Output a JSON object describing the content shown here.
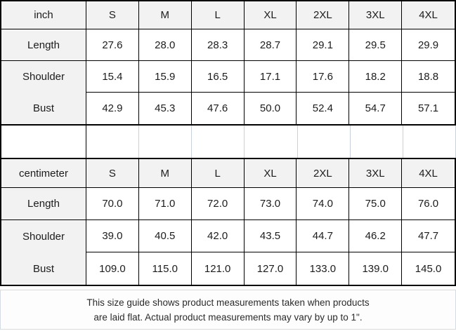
{
  "colors": {
    "table_border": "#000000",
    "light_border": "#c9d1dd",
    "header_bg": "#f2f2f2",
    "cell_bg": "#ffffff",
    "footer_bg": "#fdfdfd",
    "text": "#1c1c1c"
  },
  "tables": [
    {
      "unit_label": "inch",
      "sizes": [
        "S",
        "M",
        "L",
        "XL",
        "2XL",
        "3XL",
        "4XL"
      ],
      "rows": [
        {
          "label": "Length",
          "values": [
            "27.6",
            "28.0",
            "28.3",
            "28.7",
            "29.1",
            "29.5",
            "29.9"
          ]
        },
        {
          "label": "Shoulder",
          "values": [
            "15.4",
            "15.9",
            "16.5",
            "17.1",
            "17.6",
            "18.2",
            "18.8"
          ]
        },
        {
          "label": "Bust",
          "values": [
            "42.9",
            "45.3",
            "47.6",
            "50.0",
            "52.4",
            "54.7",
            "57.1"
          ]
        }
      ]
    },
    {
      "unit_label": "centimeter",
      "sizes": [
        "S",
        "M",
        "L",
        "XL",
        "2XL",
        "3XL",
        "4XL"
      ],
      "rows": [
        {
          "label": "Length",
          "values": [
            "70.0",
            "71.0",
            "72.0",
            "73.0",
            "74.0",
            "75.0",
            "76.0"
          ]
        },
        {
          "label": "Shoulder",
          "values": [
            "39.0",
            "40.5",
            "42.0",
            "43.5",
            "44.7",
            "46.2",
            "47.7"
          ]
        },
        {
          "label": "Bust",
          "values": [
            "109.0",
            "115.0",
            "121.0",
            "127.0",
            "133.0",
            "139.0",
            "145.0"
          ]
        }
      ]
    }
  ],
  "footer": {
    "line1": "This size guide shows product measurements taken when products",
    "line2": "are laid flat. Actual product measurements may vary by up to 1\"."
  }
}
